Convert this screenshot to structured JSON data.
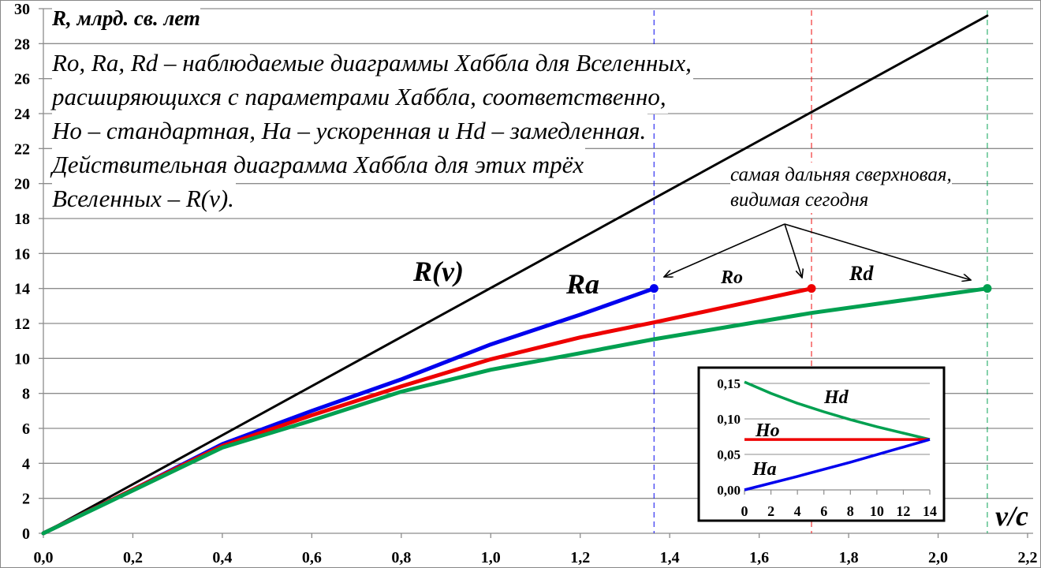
{
  "chart_data": {
    "type": "line",
    "ylabel": "R, млрд. св. лет",
    "xlabel": "v/c",
    "xlim": [
      0,
      2.2
    ],
    "ylim": [
      0,
      30
    ],
    "grid": "horizontal",
    "x_ticks": [
      "0,0",
      "0,2",
      "0,4",
      "0,6",
      "0,8",
      "1,0",
      "1,2",
      "1,4",
      "1,6",
      "1,8",
      "2,0",
      "2,2"
    ],
    "y_ticks": [
      "0",
      "2",
      "4",
      "6",
      "8",
      "10",
      "12",
      "14",
      "16",
      "18",
      "20",
      "22",
      "24",
      "26",
      "28",
      "30"
    ],
    "description_lines": [
      "Ro, Ra, Rd – наблюдаемые диаграммы Хаббла для Вселенных,",
      "расширяющихся с параметрами Хаббла, соответственно,",
      "Ho – стандартная, Ha – ускоренная и Hd – замедленная.",
      "Действительная диаграмма Хаббла для этих трёх",
      "Вселенных – R(v)."
    ],
    "annotation_lines": [
      "самая дальняя сверхновая,",
      "видимая сегодня"
    ],
    "series": [
      {
        "name": "R(v)",
        "color": "#000000",
        "points": [
          [
            0,
            0
          ],
          [
            2.11,
            29.6
          ]
        ]
      },
      {
        "name": "Ra",
        "color": "#0000ee",
        "points": [
          [
            0,
            0
          ],
          [
            0.2,
            2.5
          ],
          [
            0.4,
            5.1
          ],
          [
            0.6,
            7.0
          ],
          [
            0.8,
            8.8
          ],
          [
            1.0,
            10.8
          ],
          [
            1.2,
            12.5
          ],
          [
            1.365,
            14.0
          ]
        ]
      },
      {
        "name": "Ro",
        "color": "#ee0000",
        "points": [
          [
            0,
            0
          ],
          [
            0.2,
            2.5
          ],
          [
            0.4,
            5.0
          ],
          [
            0.6,
            6.75
          ],
          [
            0.8,
            8.4
          ],
          [
            1.0,
            9.95
          ],
          [
            1.2,
            11.2
          ],
          [
            1.365,
            12.06
          ],
          [
            1.6,
            13.35
          ],
          [
            1.717,
            14.0
          ]
        ]
      },
      {
        "name": "Rd",
        "color": "#00a050",
        "points": [
          [
            0,
            0
          ],
          [
            0.2,
            2.45
          ],
          [
            0.4,
            4.9
          ],
          [
            0.6,
            6.45
          ],
          [
            0.8,
            8.1
          ],
          [
            1.0,
            9.35
          ],
          [
            1.2,
            10.3
          ],
          [
            1.365,
            11.1
          ],
          [
            1.717,
            12.6
          ],
          [
            2.11,
            14.0
          ]
        ]
      }
    ],
    "markers": [
      {
        "series": "Ra",
        "x": 1.365,
        "y": 14.0,
        "color": "#0000ee"
      },
      {
        "series": "Ro",
        "x": 1.717,
        "y": 14.0,
        "color": "#ee0000"
      },
      {
        "series": "Rd",
        "x": 2.11,
        "y": 14.0,
        "color": "#00a050"
      }
    ],
    "inset": {
      "xlim": [
        0,
        14
      ],
      "ylim": [
        0,
        0.15
      ],
      "x_ticks": [
        "0",
        "2",
        "4",
        "6",
        "8",
        "10",
        "12",
        "14"
      ],
      "y_ticks": [
        "0,00",
        "0,05",
        "0,10",
        "0,15"
      ],
      "series": [
        {
          "name": "Hd",
          "color": "#00a050",
          "points": [
            [
              0,
              0.152
            ],
            [
              2,
              0.136
            ],
            [
              4,
              0.122
            ],
            [
              6,
              0.11
            ],
            [
              8,
              0.099
            ],
            [
              10,
              0.089
            ],
            [
              12,
              0.08
            ],
            [
              14,
              0.071
            ]
          ]
        },
        {
          "name": "Ho",
          "color": "#ee0000",
          "points": [
            [
              0,
              0.071
            ],
            [
              14,
              0.071
            ]
          ]
        },
        {
          "name": "Ha",
          "color": "#0000ee",
          "points": [
            [
              0,
              0.0
            ],
            [
              4,
              0.019
            ],
            [
              8,
              0.039
            ],
            [
              14,
              0.071
            ]
          ]
        }
      ]
    }
  }
}
